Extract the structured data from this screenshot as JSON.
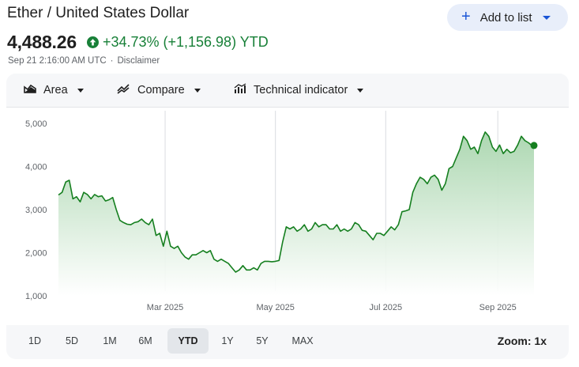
{
  "header": {
    "title": "Ether / United States Dollar",
    "add_to_list_label": "Add to list",
    "price": "4,488.26",
    "change_text": "+34.73% (+1,156.98) YTD",
    "timestamp": "Sep 21 2:16:00 AM UTC",
    "separator": "·",
    "disclaimer": "Disclaimer"
  },
  "toolbar": {
    "area_label": "Area",
    "compare_label": "Compare",
    "technical_label": "Technical indicator",
    "area_icon": "area-chart-icon",
    "compare_icon": "compare-lines-icon",
    "technical_icon": "technical-indicator-icon"
  },
  "ranges": {
    "items": [
      "1D",
      "5D",
      "1M",
      "6M",
      "YTD",
      "1Y",
      "5Y",
      "MAX"
    ],
    "active": "YTD",
    "zoom_label": "Zoom: 1x"
  },
  "colors": {
    "line": "#157f1f",
    "up": "#188038",
    "accent": "#1a55d6",
    "area_top": "#a8d5ad"
  },
  "chart_data": {
    "type": "area",
    "x_ticks": [
      "Mar 2025",
      "May 2025",
      "Jul 2025",
      "Sep 2025"
    ],
    "x_tick_dates": [
      "2025-03-01",
      "2025-05-01",
      "2025-07-01",
      "2025-09-01"
    ],
    "y_ticks": [
      1000,
      2000,
      3000,
      4000,
      5000
    ],
    "y_tick_labels": [
      "1,000",
      "2,000",
      "3,000",
      "4,000",
      "5,000"
    ],
    "ylim": [
      1000,
      5000
    ],
    "xlim": [
      "2025-01-01",
      "2025-09-21"
    ],
    "grid": "vertical",
    "last_point_marker": true,
    "series": [
      {
        "x": [
          "2025-01-01",
          "2025-01-03",
          "2025-01-05",
          "2025-01-07",
          "2025-01-09",
          "2025-01-11",
          "2025-01-13",
          "2025-01-15",
          "2025-01-17",
          "2025-01-19",
          "2025-01-21",
          "2025-01-23",
          "2025-01-25",
          "2025-01-27",
          "2025-01-29",
          "2025-01-31",
          "2025-02-02",
          "2025-02-04",
          "2025-02-06",
          "2025-02-08",
          "2025-02-10",
          "2025-02-12",
          "2025-02-14",
          "2025-02-16",
          "2025-02-18",
          "2025-02-20",
          "2025-02-22",
          "2025-02-24",
          "2025-02-26",
          "2025-02-28",
          "2025-03-02",
          "2025-03-04",
          "2025-03-06",
          "2025-03-08",
          "2025-03-10",
          "2025-03-12",
          "2025-03-14",
          "2025-03-16",
          "2025-03-18",
          "2025-03-20",
          "2025-03-22",
          "2025-03-24",
          "2025-03-26",
          "2025-03-28",
          "2025-03-30",
          "2025-04-01",
          "2025-04-03",
          "2025-04-05",
          "2025-04-07",
          "2025-04-09",
          "2025-04-11",
          "2025-04-13",
          "2025-04-15",
          "2025-04-17",
          "2025-04-19",
          "2025-04-21",
          "2025-04-23",
          "2025-04-25",
          "2025-04-27",
          "2025-04-29",
          "2025-05-01",
          "2025-05-03",
          "2025-05-05",
          "2025-05-07",
          "2025-05-09",
          "2025-05-11",
          "2025-05-13",
          "2025-05-15",
          "2025-05-17",
          "2025-05-19",
          "2025-05-21",
          "2025-05-23",
          "2025-05-25",
          "2025-05-27",
          "2025-05-29",
          "2025-05-31",
          "2025-06-02",
          "2025-06-04",
          "2025-06-06",
          "2025-06-08",
          "2025-06-10",
          "2025-06-12",
          "2025-06-14",
          "2025-06-16",
          "2025-06-18",
          "2025-06-20",
          "2025-06-22",
          "2025-06-24",
          "2025-06-26",
          "2025-06-28",
          "2025-06-30",
          "2025-07-02",
          "2025-07-04",
          "2025-07-06",
          "2025-07-08",
          "2025-07-10",
          "2025-07-12",
          "2025-07-14",
          "2025-07-16",
          "2025-07-18",
          "2025-07-20",
          "2025-07-22",
          "2025-07-24",
          "2025-07-26",
          "2025-07-28",
          "2025-07-30",
          "2025-08-01",
          "2025-08-03",
          "2025-08-05",
          "2025-08-07",
          "2025-08-09",
          "2025-08-11",
          "2025-08-13",
          "2025-08-15",
          "2025-08-17",
          "2025-08-19",
          "2025-08-21",
          "2025-08-23",
          "2025-08-25",
          "2025-08-27",
          "2025-08-29",
          "2025-08-31",
          "2025-09-02",
          "2025-09-04",
          "2025-09-06",
          "2025-09-08",
          "2025-09-10",
          "2025-09-12",
          "2025-09-14",
          "2025-09-16",
          "2025-09-18",
          "2025-09-20",
          "2025-09-21"
        ],
        "y": [
          3340,
          3400,
          3640,
          3680,
          3250,
          3300,
          3180,
          3400,
          3350,
          3250,
          3350,
          3300,
          3320,
          3200,
          3230,
          3280,
          3000,
          2750,
          2700,
          2660,
          2650,
          2700,
          2720,
          2780,
          2700,
          2650,
          2780,
          2400,
          2450,
          2150,
          2500,
          2150,
          2100,
          2150,
          2000,
          1900,
          1850,
          1950,
          1950,
          2000,
          2050,
          2000,
          2050,
          1850,
          1800,
          1850,
          1800,
          1750,
          1650,
          1550,
          1600,
          1700,
          1600,
          1600,
          1650,
          1600,
          1750,
          1800,
          1800,
          1790,
          1800,
          1820,
          2250,
          2600,
          2550,
          2600,
          2500,
          2550,
          2650,
          2500,
          2550,
          2700,
          2600,
          2650,
          2650,
          2550,
          2550,
          2650,
          2500,
          2550,
          2500,
          2550,
          2700,
          2650,
          2520,
          2500,
          2400,
          2300,
          2450,
          2450,
          2400,
          2500,
          2600,
          2530,
          2650,
          2950,
          2970,
          3000,
          3400,
          3600,
          3750,
          3700,
          3600,
          3750,
          3800,
          3700,
          3450,
          3600,
          3950,
          4000,
          4200,
          4400,
          4700,
          4600,
          4400,
          4450,
          4300,
          4600,
          4800,
          4700,
          4450,
          4350,
          4500,
          4300,
          4400,
          4320,
          4350,
          4500,
          4700,
          4600,
          4550,
          4480,
          4488.26
        ]
      }
    ]
  }
}
